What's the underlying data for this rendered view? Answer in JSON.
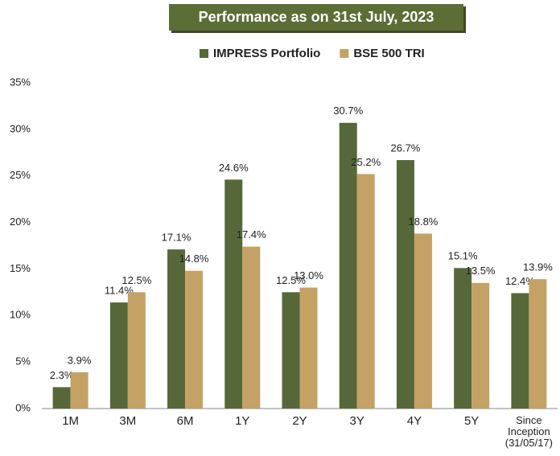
{
  "chart_data": {
    "type": "bar",
    "title": "Performance as on 31st July, 2023",
    "categories": [
      "1M",
      "3M",
      "6M",
      "1Y",
      "2Y",
      "3Y",
      "4Y",
      "5Y",
      "Since Inception (31/05/17)"
    ],
    "series": [
      {
        "name": "IMPRESS Portfolio",
        "color": "#56683a",
        "values": [
          2.3,
          11.4,
          17.1,
          24.6,
          12.5,
          30.7,
          26.7,
          15.1,
          12.4
        ],
        "value_labels": [
          "2.3%",
          "11.4%",
          "17.1%",
          "24.6%",
          "12.5%",
          "30.7%",
          "26.7%",
          "15.1%",
          "12.4%"
        ]
      },
      {
        "name": "BSE 500 TRI",
        "color": "#c4a265",
        "values": [
          3.9,
          12.5,
          14.8,
          17.4,
          13.0,
          25.2,
          18.8,
          13.5,
          13.9
        ],
        "value_labels": [
          "3.9%",
          "12.5%",
          "14.8%",
          "17.4%",
          "13.0%",
          "25.2%",
          "18.8%",
          "13.5%",
          "13.9%"
        ]
      }
    ],
    "ylim": [
      0,
      35
    ],
    "yticks": [
      {
        "value": 0,
        "label": "0%"
      },
      {
        "value": 5,
        "label": "5%"
      },
      {
        "value": 10,
        "label": "10%"
      },
      {
        "value": 15,
        "label": "15%"
      },
      {
        "value": 20,
        "label": "20%"
      },
      {
        "value": 25,
        "label": "25%"
      },
      {
        "value": 30,
        "label": "30%"
      },
      {
        "value": 35,
        "label": "35%"
      }
    ],
    "grid": false,
    "legend": "top"
  }
}
